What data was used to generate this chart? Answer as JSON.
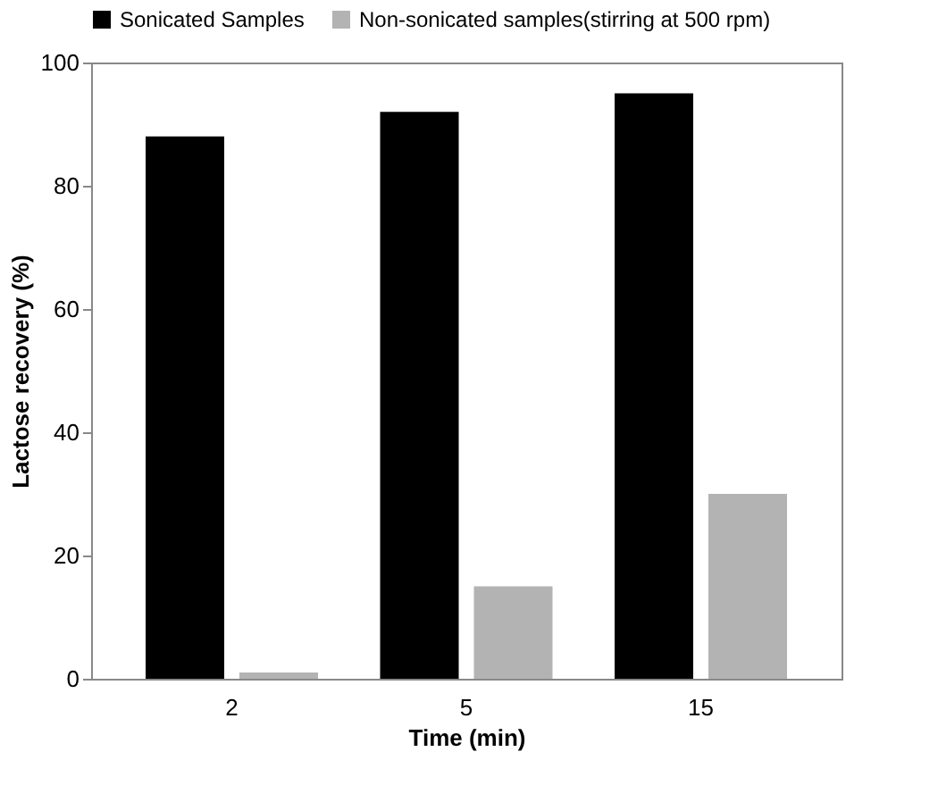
{
  "chart_data": {
    "type": "bar",
    "xlabel": "Time (min)",
    "ylabel": "Lactose recovery (%)",
    "categories": [
      "2",
      "5",
      "15"
    ],
    "series": [
      {
        "name": "Sonicated Samples",
        "color": "#000000",
        "values": [
          88,
          92,
          95
        ]
      },
      {
        "name": "Non-sonicated samples(stirring at 500 rpm)",
        "color": "#b3b3b3",
        "values": [
          1,
          15,
          30
        ]
      }
    ],
    "ylim": [
      0,
      100
    ],
    "yticks": [
      0,
      20,
      40,
      60,
      80,
      100
    ],
    "grid": false,
    "legend": "top"
  }
}
